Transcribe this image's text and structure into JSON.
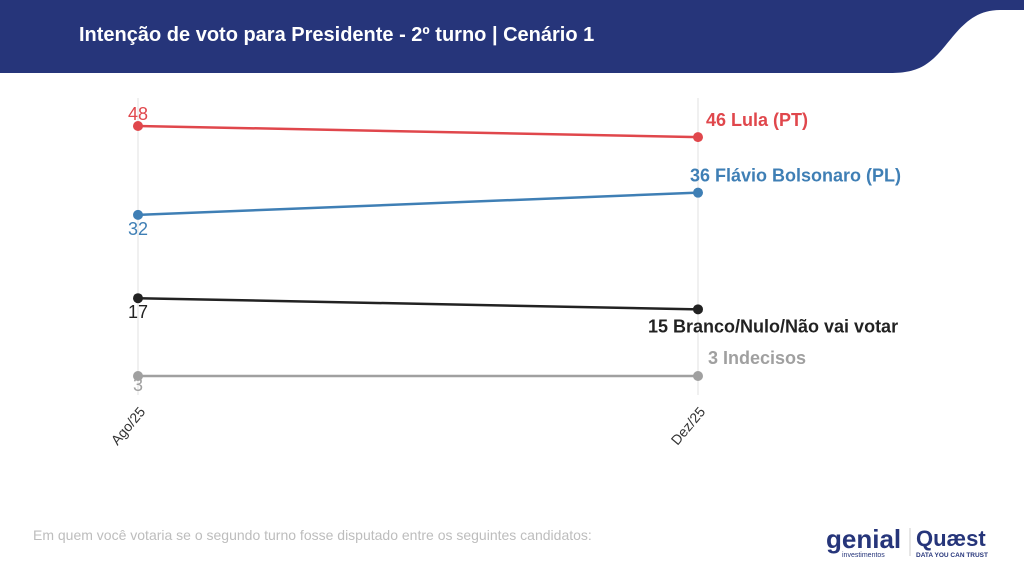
{
  "header": {
    "title": "Intenção de voto para Presidente - 2º turno | Cenário 1"
  },
  "footer": {
    "question": "Em quem você votaria se o segundo turno fosse disputado entre os seguintes candidatos:",
    "logos": {
      "genial": "genial",
      "genial_sub": "investimentos",
      "quaest": "Quæst",
      "quaest_sub": "DATA YOU CAN TRUST"
    }
  },
  "colors": {
    "header": "#26357a",
    "lula": "#e0474c",
    "flavio": "#3f7fb5",
    "branco": "#222222",
    "indecisos": "#a0a0a0"
  },
  "chart_data": {
    "type": "line",
    "categories": [
      "Ago/25",
      "Dez/25"
    ],
    "ylim": [
      3,
      48
    ],
    "grid": "vertical",
    "series": [
      {
        "name": "Lula (PT)",
        "values": [
          48,
          46
        ],
        "color": "#e0474c",
        "end_label": "46 Lula (PT)",
        "start_label": "48"
      },
      {
        "name": "Flávio Bolsonaro (PL)",
        "values": [
          32,
          36
        ],
        "color": "#3f7fb5",
        "end_label": "36 Flávio Bolsonaro (PL)",
        "start_label": "32"
      },
      {
        "name": "Branco/Nulo/Não vai votar",
        "values": [
          17,
          15
        ],
        "color": "#222222",
        "end_label": "15 Branco/Nulo/Não vai votar",
        "start_label": "17"
      },
      {
        "name": "Indecisos",
        "values": [
          3,
          3
        ],
        "color": "#a0a0a0",
        "end_label": "3 Indecisos",
        "start_label": "3"
      }
    ]
  }
}
